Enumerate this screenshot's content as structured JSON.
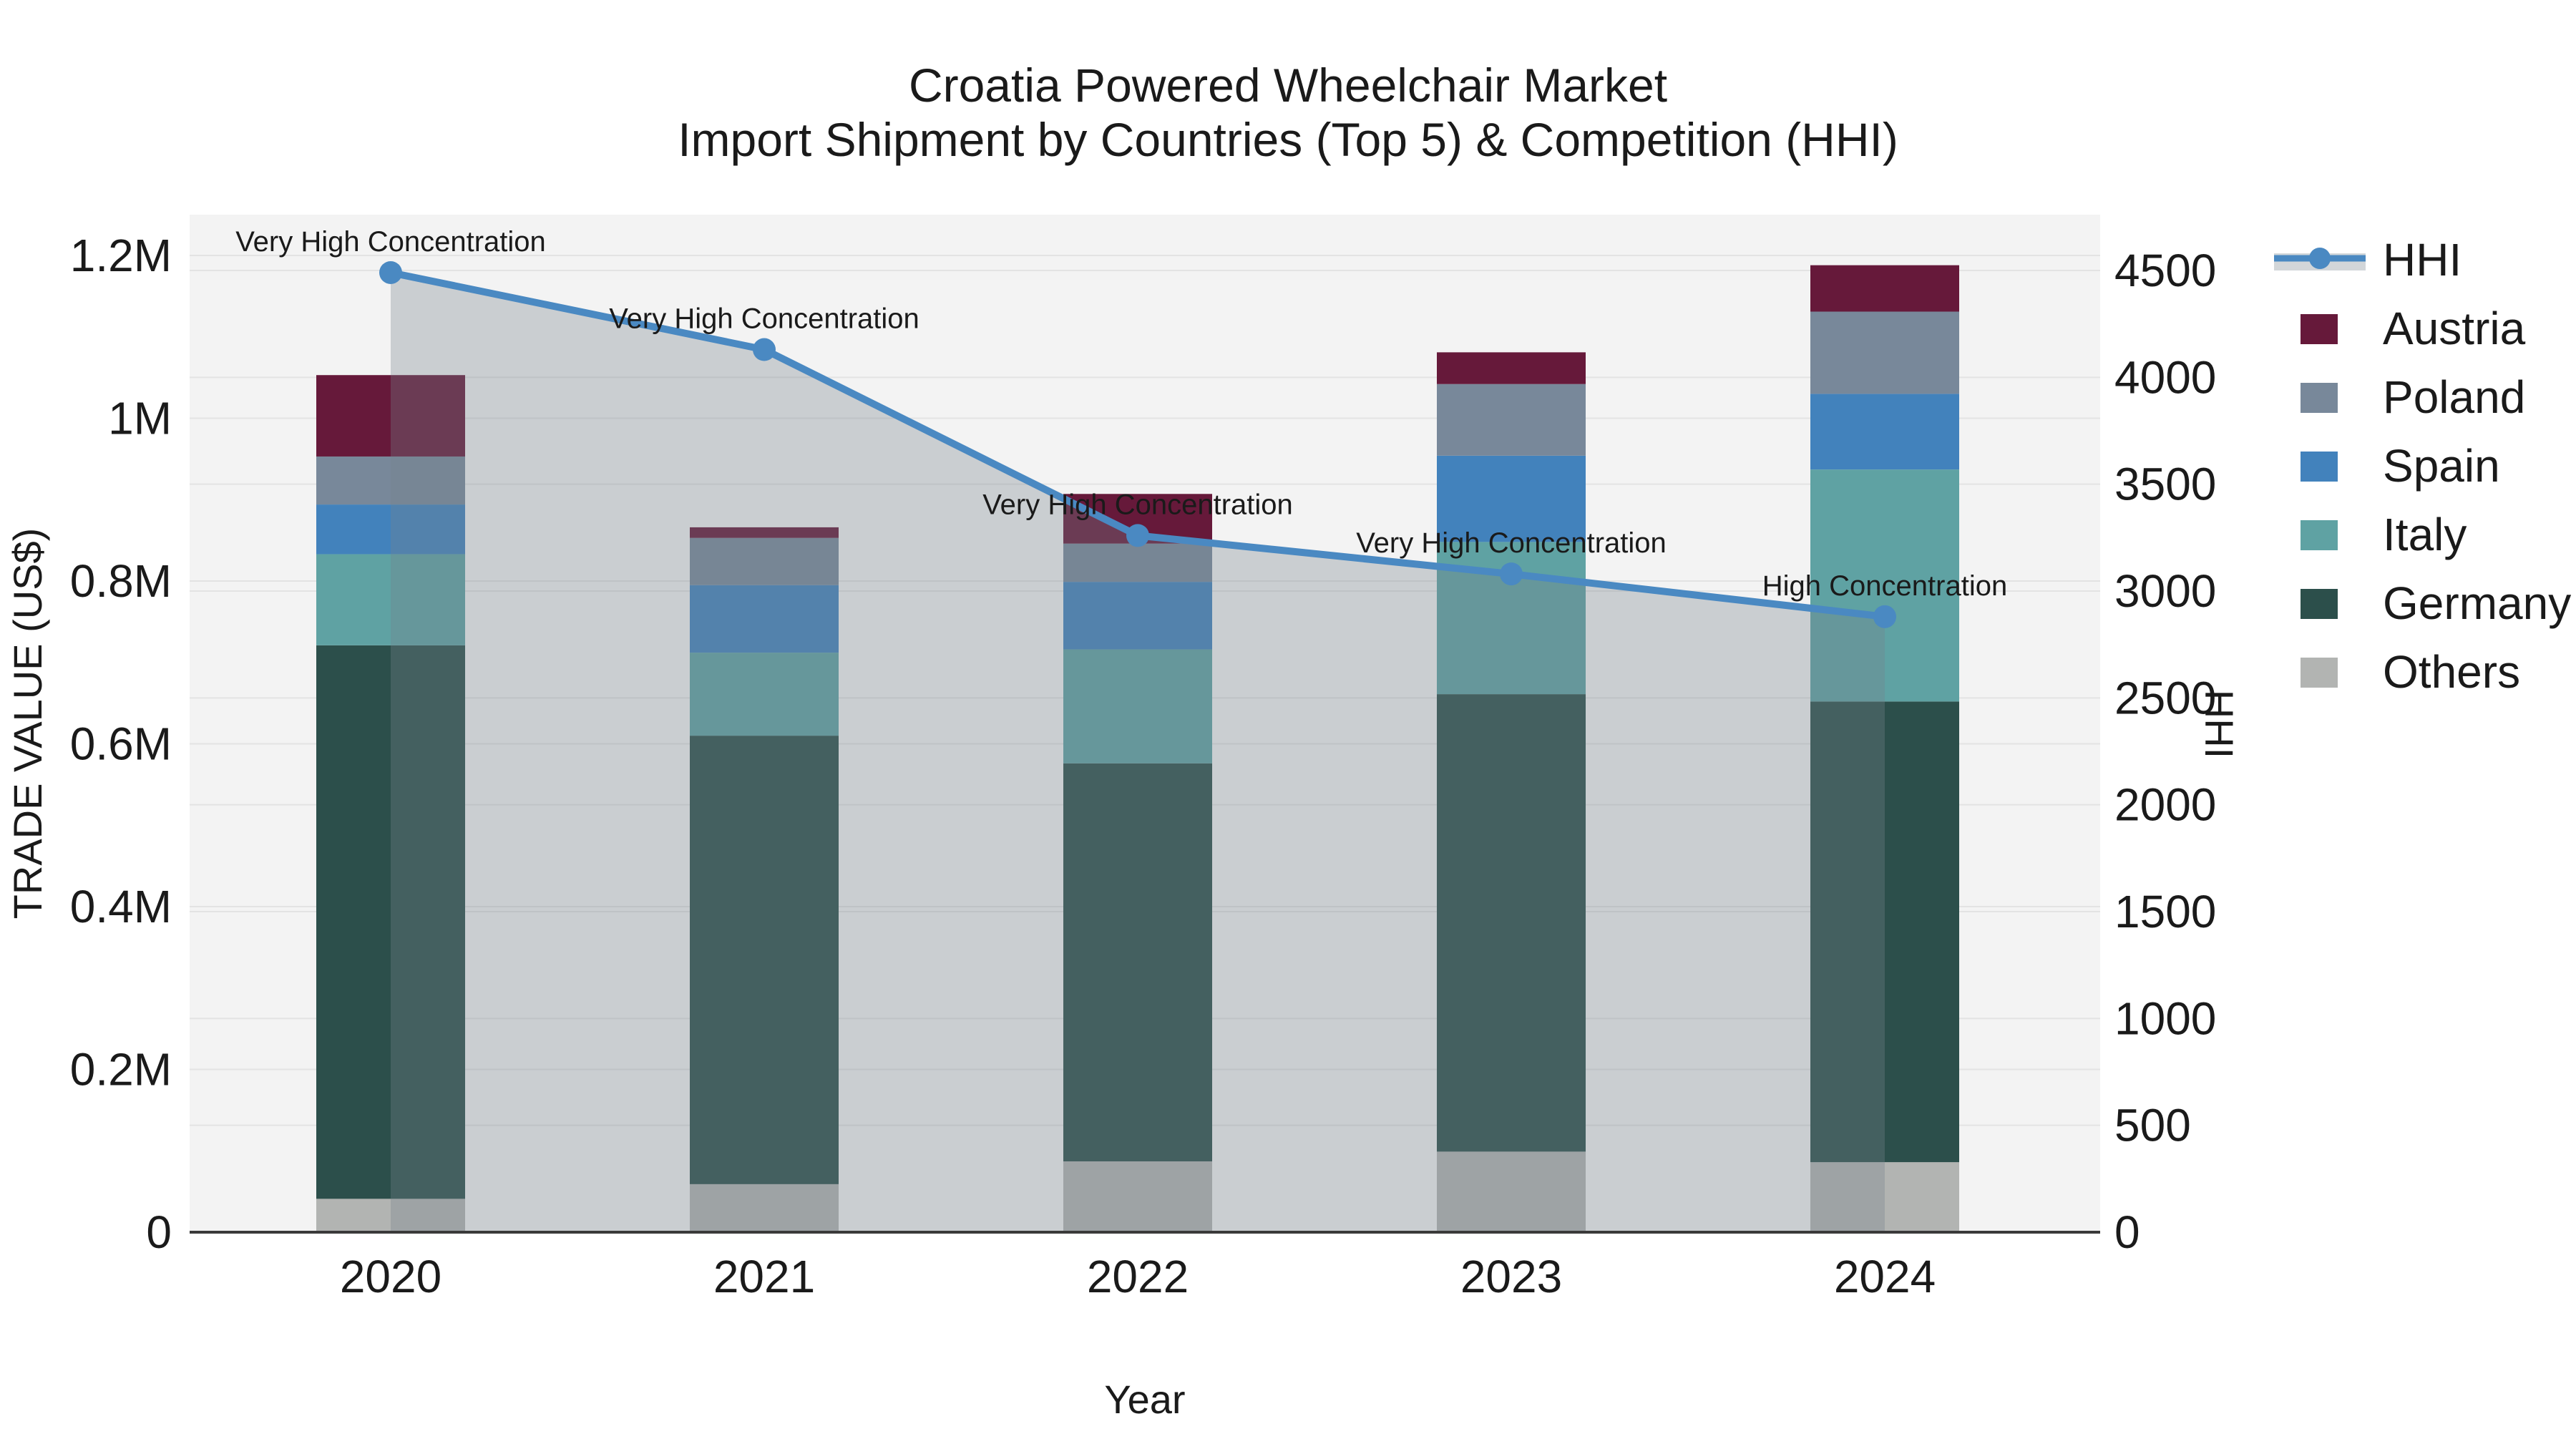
{
  "figure": {
    "title_line1": "Croatia Powered Wheelchair Market",
    "title_line2": "Import Shipment by Countries (Top 5) & Competition (HHI)",
    "background_color": "#ffffff",
    "plot_background_color": "#f3f3f3",
    "gridline_color": "#e3e3e3",
    "axis_line_color": "#3a3a3a"
  },
  "chart_data": {
    "type": "combo-stacked-bar-line",
    "x_label": "Year",
    "y_left_label": "TRADE VALUE (US$)",
    "y_right_label": "HHI",
    "categories": [
      "2020",
      "2021",
      "2022",
      "2023",
      "2024"
    ],
    "y_left_ticks": [
      "0",
      "0.2M",
      "0.4M",
      "0.6M",
      "0.8M",
      "1M",
      "1.2M"
    ],
    "y_left_tick_values": [
      0,
      200000,
      400000,
      600000,
      800000,
      1000000,
      1200000
    ],
    "y_left_lim": [
      0,
      1200000
    ],
    "y_right_ticks": [
      "0",
      "500",
      "1000",
      "1500",
      "2000",
      "2500",
      "3000",
      "3500",
      "4000",
      "4500"
    ],
    "y_right_tick_values": [
      0,
      500,
      1000,
      1500,
      2000,
      2500,
      3000,
      3500,
      4000,
      4500
    ],
    "y_right_lim": [
      0,
      4500
    ],
    "grid": true,
    "bar_series_bottom_to_top": [
      {
        "name": "Others",
        "color": "#b2b4b2",
        "values": [
          41000,
          59000,
          87000,
          99000,
          86000
        ]
      },
      {
        "name": "Germany",
        "color": "#2c4f4b",
        "values": [
          680000,
          551000,
          489000,
          562000,
          566000
        ]
      },
      {
        "name": "Italy",
        "color": "#5fa2a3",
        "values": [
          112000,
          102000,
          140000,
          187000,
          285000
        ]
      },
      {
        "name": "Spain",
        "color": "#4282bc",
        "values": [
          61000,
          83000,
          83000,
          106000,
          93000
        ]
      },
      {
        "name": "Poland",
        "color": "#78889a",
        "values": [
          59000,
          58000,
          47000,
          88000,
          101000
        ]
      },
      {
        "name": "Austria",
        "color": "#66193a",
        "values": [
          100000,
          13000,
          61000,
          39000,
          57000
        ]
      }
    ],
    "line_series": {
      "name": "HHI",
      "color": "#4a89c2",
      "area_fill_color": "rgba(118,130,141,0.33)",
      "values": [
        4490,
        4130,
        3260,
        3080,
        2880
      ]
    },
    "annotations": [
      {
        "x": "2020",
        "text": "Very High Concentration"
      },
      {
        "x": "2021",
        "text": "Very High Concentration"
      },
      {
        "x": "2022",
        "text": "Very High Concentration"
      },
      {
        "x": "2023",
        "text": "Very High Concentration"
      },
      {
        "x": "2024",
        "text": "High Concentration"
      }
    ],
    "legend_top_to_bottom": [
      "HHI",
      "Austria",
      "Poland",
      "Spain",
      "Italy",
      "Germany",
      "Others"
    ],
    "legend_position": "right"
  }
}
